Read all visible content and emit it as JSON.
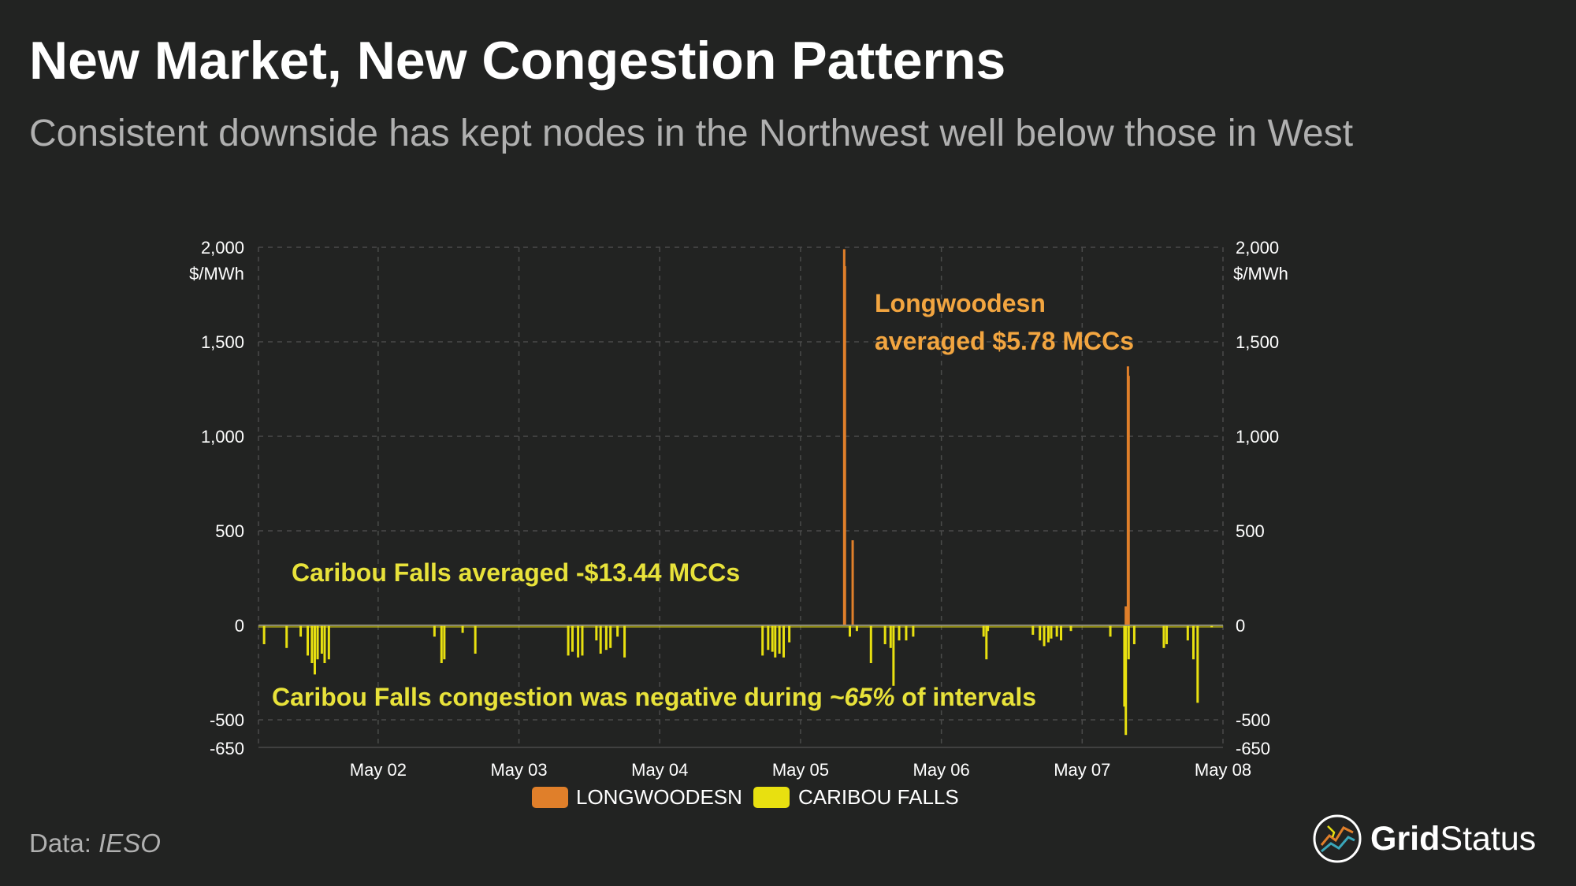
{
  "header": {
    "title": "New Market, New Congestion Patterns",
    "subtitle": "Consistent downside has kept nodes in the Northwest well below those in West"
  },
  "source": {
    "label": "Data:",
    "name": "IESO"
  },
  "brand": {
    "name_bold": "Grid",
    "name_regular": "Status"
  },
  "colors": {
    "longwoodesn": "#e07f2a",
    "caribou": "#e8e010",
    "grid": "#4a4b4a",
    "axis_text": "#ffffff",
    "zero_line": "#8a8a8a"
  },
  "annotations": {
    "longwoodesn_line1": "Longwoodesn",
    "longwoodesn_line2": "averaged $5.78 MCCs",
    "caribou_avg": "Caribou Falls averaged -$13.44 MCCs",
    "caribou_neg_pre": "Caribou Falls congestion was negative during ",
    "caribou_neg_pct": "~65%",
    "caribou_neg_post": " of intervals"
  },
  "chart_data": {
    "type": "bar",
    "y_unit": "$/MWh",
    "ylim": [
      -650,
      2000
    ],
    "y_ticks": [
      -650,
      -500,
      0,
      500,
      1000,
      1500,
      2000
    ],
    "y_tick_labels": [
      "-650",
      "-500",
      "0",
      "500",
      "1,000",
      "1,500",
      "2,000"
    ],
    "x_range_days": [
      1.15,
      8.0
    ],
    "x_ticks": [
      2,
      3,
      4,
      5,
      6,
      7,
      8
    ],
    "x_tick_labels": [
      "May 02",
      "May 03",
      "May 04",
      "May 05",
      "May 06",
      "May 07",
      "May 08"
    ],
    "legend": "bottom-center",
    "series": [
      {
        "name": "LONGWOODESN",
        "points": [
          [
            5.31,
            1990
          ],
          [
            5.315,
            1900
          ],
          [
            5.37,
            450
          ],
          [
            7.31,
            100
          ],
          [
            7.325,
            1370
          ],
          [
            7.33,
            1320
          ]
        ]
      },
      {
        "name": "CARIBOU FALLS",
        "points": [
          [
            1.19,
            -100
          ],
          [
            1.35,
            -120
          ],
          [
            1.45,
            -60
          ],
          [
            1.5,
            -160
          ],
          [
            1.53,
            -200
          ],
          [
            1.55,
            -260
          ],
          [
            1.57,
            -180
          ],
          [
            1.6,
            -150
          ],
          [
            1.62,
            -200
          ],
          [
            1.65,
            -180
          ],
          [
            2.4,
            -60
          ],
          [
            2.45,
            -200
          ],
          [
            2.47,
            -180
          ],
          [
            2.6,
            -40
          ],
          [
            2.69,
            -150
          ],
          [
            3.35,
            -160
          ],
          [
            3.38,
            -140
          ],
          [
            3.42,
            -170
          ],
          [
            3.45,
            -160
          ],
          [
            3.55,
            -80
          ],
          [
            3.58,
            -150
          ],
          [
            3.62,
            -130
          ],
          [
            3.65,
            -120
          ],
          [
            3.7,
            -60
          ],
          [
            3.75,
            -170
          ],
          [
            4.73,
            -160
          ],
          [
            4.77,
            -130
          ],
          [
            4.8,
            -140
          ],
          [
            4.82,
            -170
          ],
          [
            4.85,
            -150
          ],
          [
            4.88,
            -170
          ],
          [
            4.92,
            -90
          ],
          [
            5.35,
            -60
          ],
          [
            5.4,
            -30
          ],
          [
            5.5,
            -200
          ],
          [
            5.6,
            -100
          ],
          [
            5.64,
            -120
          ],
          [
            5.66,
            -320
          ],
          [
            5.7,
            -80
          ],
          [
            5.75,
            -80
          ],
          [
            5.8,
            -60
          ],
          [
            6.3,
            -60
          ],
          [
            6.33,
            -30
          ],
          [
            6.32,
            -180
          ],
          [
            6.65,
            -50
          ],
          [
            6.7,
            -80
          ],
          [
            6.73,
            -110
          ],
          [
            6.76,
            -90
          ],
          [
            6.78,
            -70
          ],
          [
            6.82,
            -60
          ],
          [
            6.85,
            -80
          ],
          [
            6.92,
            -30
          ],
          [
            7.2,
            -60
          ],
          [
            7.3,
            -430
          ],
          [
            7.31,
            -580
          ],
          [
            7.33,
            -180
          ],
          [
            7.37,
            -100
          ],
          [
            7.58,
            -120
          ],
          [
            7.6,
            -100
          ],
          [
            7.75,
            -80
          ],
          [
            7.79,
            -180
          ],
          [
            7.82,
            -410
          ],
          [
            7.92,
            -10
          ]
        ]
      }
    ]
  }
}
